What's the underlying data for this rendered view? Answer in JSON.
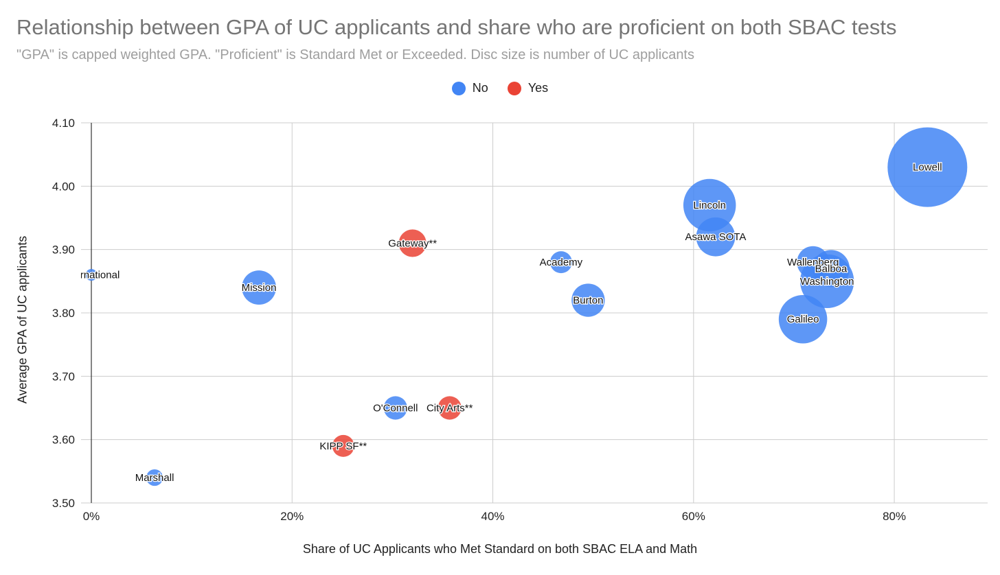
{
  "chart_data": {
    "type": "bubble",
    "title": "Relationship between GPA of UC applicants and share who are proficient on both SBAC tests",
    "subtitle": "\"GPA\" is capped weighted GPA. \"Proficient\" is Standard Met or Exceeded. Disc size is number of UC applicants",
    "xlabel": "Share of UC Applicants who Met Standard on both SBAC ELA and Math",
    "ylabel": "Average GPA of UC applicants",
    "xlim": [
      0,
      0.893
    ],
    "ylim": [
      3.5,
      4.1
    ],
    "x_ticks": [
      {
        "value": 0.0,
        "label": "0%"
      },
      {
        "value": 0.2,
        "label": "20%"
      },
      {
        "value": 0.4,
        "label": "40%"
      },
      {
        "value": 0.6,
        "label": "60%"
      },
      {
        "value": 0.8,
        "label": "80%"
      }
    ],
    "y_ticks": [
      {
        "value": 3.5,
        "label": "3.50"
      },
      {
        "value": 3.6,
        "label": "3.60"
      },
      {
        "value": 3.7,
        "label": "3.70"
      },
      {
        "value": 3.8,
        "label": "3.80"
      },
      {
        "value": 3.9,
        "label": "3.90"
      },
      {
        "value": 4.0,
        "label": "4.00"
      },
      {
        "value": 4.1,
        "label": "4.10"
      }
    ],
    "grid": true,
    "legend_position": "top",
    "colors": {
      "No": "#4285f4",
      "Yes": "#ea4335"
    },
    "series": [
      {
        "name": "No",
        "color": "#4285f4"
      },
      {
        "name": "Yes",
        "color": "#ea4335"
      }
    ],
    "points": [
      {
        "label": "International",
        "x": 0.0,
        "y": 3.86,
        "size": 10,
        "group": "No"
      },
      {
        "label": "Marshall",
        "x": 0.063,
        "y": 3.54,
        "size": 20,
        "group": "No"
      },
      {
        "label": "Mission",
        "x": 0.167,
        "y": 3.84,
        "size": 85,
        "group": "No"
      },
      {
        "label": "Gateway**",
        "x": 0.32,
        "y": 3.91,
        "size": 55,
        "group": "Yes"
      },
      {
        "label": "KIPP SF**",
        "x": 0.251,
        "y": 3.59,
        "size": 35,
        "group": "Yes"
      },
      {
        "label": "O'Connell",
        "x": 0.303,
        "y": 3.65,
        "size": 40,
        "group": "No"
      },
      {
        "label": "City Arts**",
        "x": 0.357,
        "y": 3.65,
        "size": 40,
        "group": "Yes"
      },
      {
        "label": "Academy",
        "x": 0.468,
        "y": 3.88,
        "size": 35,
        "group": "No"
      },
      {
        "label": "Burton",
        "x": 0.495,
        "y": 3.82,
        "size": 80,
        "group": "No"
      },
      {
        "label": "Lincoln",
        "x": 0.616,
        "y": 3.97,
        "size": 200,
        "group": "No"
      },
      {
        "label": "Asawa SOTA",
        "x": 0.622,
        "y": 3.92,
        "size": 110,
        "group": "No"
      },
      {
        "label": "Wallenberg",
        "x": 0.719,
        "y": 3.88,
        "size": 75,
        "group": "No"
      },
      {
        "label": "Balboa",
        "x": 0.737,
        "y": 3.87,
        "size": 100,
        "group": "No"
      },
      {
        "label": "Washington",
        "x": 0.733,
        "y": 3.85,
        "size": 210,
        "group": "No"
      },
      {
        "label": "Galileo",
        "x": 0.709,
        "y": 3.79,
        "size": 170,
        "group": "No"
      },
      {
        "label": "Lowell",
        "x": 0.833,
        "y": 4.03,
        "size": 460,
        "group": "No"
      }
    ]
  }
}
